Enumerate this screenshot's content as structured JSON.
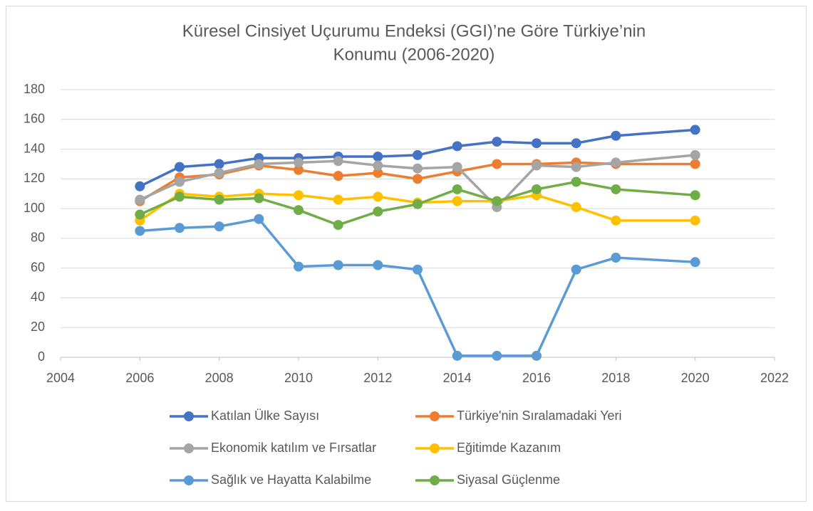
{
  "chart_data": {
    "type": "line",
    "title": [
      "Küresel Cinsiyet Uçurumu Endeksi (GGI)’ne Göre Türkiye’nin",
      "Konumu  (2006-2020)"
    ],
    "x": [
      2006,
      2007,
      2008,
      2009,
      2010,
      2011,
      2012,
      2013,
      2014,
      2015,
      2016,
      2017,
      2018,
      2020
    ],
    "series": [
      {
        "name": "Katılan Ülke Sayısı",
        "color": "#4472c4",
        "values": [
          115,
          128,
          130,
          134,
          134,
          135,
          135,
          136,
          142,
          145,
          144,
          144,
          149,
          153
        ]
      },
      {
        "name": "Türkiye'nin Sıralamadaki Yeri",
        "color": "#ed7d31",
        "values": [
          105,
          121,
          123,
          129,
          126,
          122,
          124,
          120,
          125,
          130,
          130,
          131,
          130,
          130
        ]
      },
      {
        "name": "Ekonomik katılım ve Fırsatlar",
        "color": "#a5a5a5",
        "values": [
          106,
          118,
          124,
          130,
          131,
          132,
          129,
          127,
          128,
          101,
          129,
          128,
          131,
          136
        ]
      },
      {
        "name": "Eğitimde Kazanım",
        "color": "#ffc000",
        "values": [
          92,
          110,
          108,
          110,
          109,
          106,
          108,
          104,
          105,
          105,
          109,
          101,
          92,
          92
        ]
      },
      {
        "name": "Sağlık ve Hayatta Kalabilme",
        "color": "#5b9bd5",
        "values": [
          85,
          87,
          88,
          93,
          61,
          62,
          62,
          59,
          1,
          1,
          1,
          59,
          67,
          64
        ]
      },
      {
        "name": "Siyasal Güçlenme",
        "color": "#70ad47",
        "values": [
          96,
          108,
          106,
          107,
          99,
          89,
          98,
          103,
          113,
          105,
          113,
          118,
          113,
          109
        ]
      }
    ],
    "xlim": [
      2004,
      2022
    ],
    "xticks": [
      2004,
      2006,
      2008,
      2010,
      2012,
      2014,
      2016,
      2018,
      2020,
      2022
    ],
    "ylim": [
      0,
      180
    ],
    "yticks": [
      0,
      20,
      40,
      60,
      80,
      100,
      120,
      140,
      160,
      180
    ],
    "grid": true,
    "legend": "bottom"
  }
}
